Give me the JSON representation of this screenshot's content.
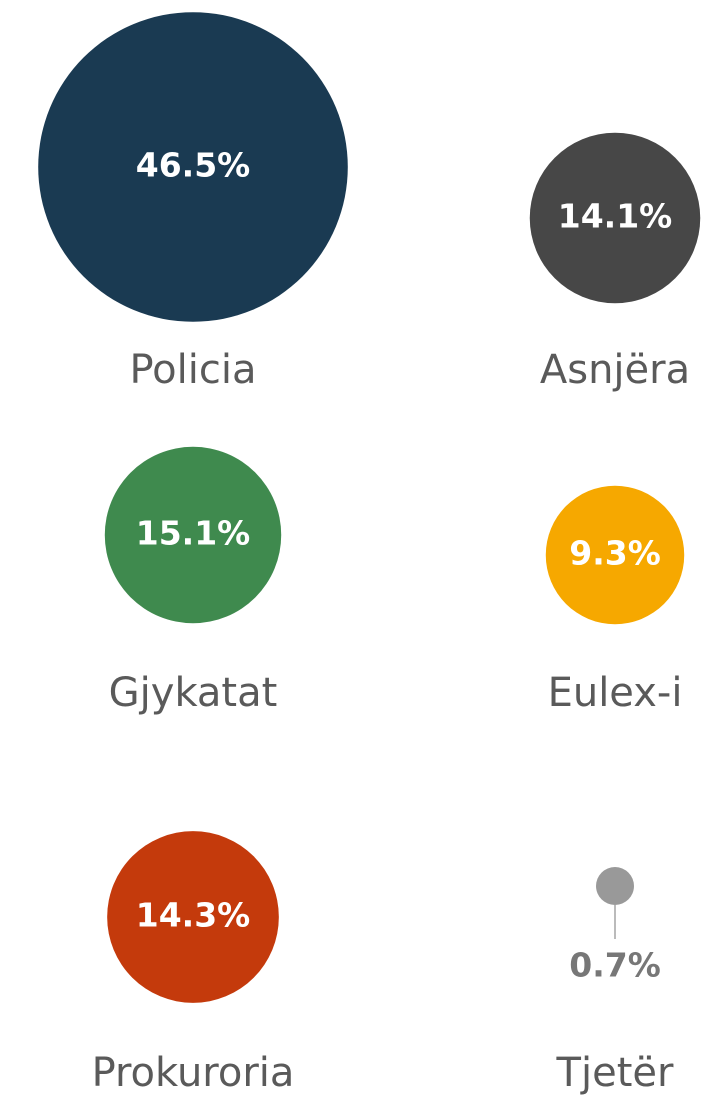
{
  "chart_data": {
    "type": "bubble",
    "categories": [
      "Policia",
      "Asnjëra",
      "Gjykatat",
      "Eulex-i",
      "Prokuroria",
      "Tjetër"
    ],
    "values": [
      46.5,
      14.1,
      15.1,
      9.3,
      14.3,
      0.7
    ],
    "value_labels": [
      "46.5%",
      "14.1%",
      "15.1%",
      "9.3%",
      "14.3%",
      "0.7%"
    ],
    "colors": [
      "#1a3a52",
      "#474747",
      "#3f8a4e",
      "#f6a800",
      "#c43a0c",
      "#999999"
    ]
  }
}
